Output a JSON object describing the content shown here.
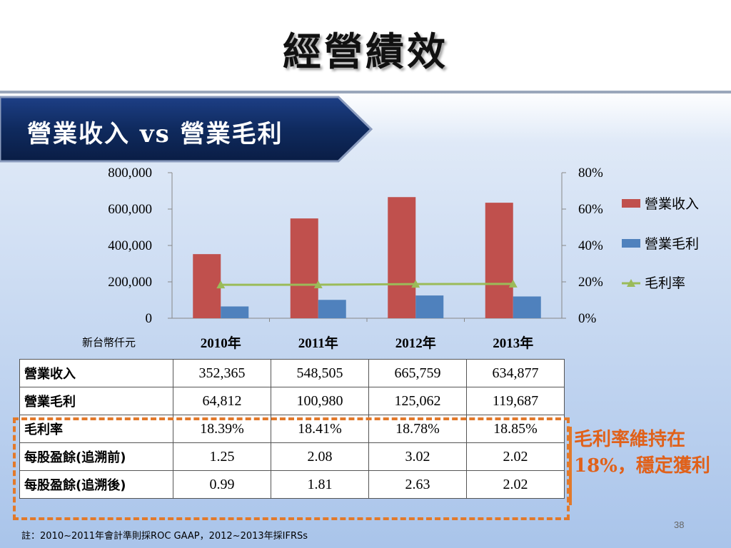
{
  "slide": {
    "title": "經營績效",
    "banner": "營業收入 vs 營業毛利",
    "note": "毛利率維持在18%，穩定獲利",
    "footnote": "註：2010~2011年會計準則採ROC GAAP，2012~2013年採IFRSs",
    "page_number": "38"
  },
  "colors": {
    "revenue": "#c0504d",
    "gross_profit": "#4f81bd",
    "margin_line": "#9bbb59",
    "banner": "#0f2a5e",
    "highlight": "#e2792a"
  },
  "chart_data": {
    "type": "bar",
    "categories": [
      "2010年",
      "2011年",
      "2012年",
      "2013年"
    ],
    "unit_label": "新台幣仟元",
    "series": [
      {
        "name": "營業收入",
        "values": [
          352365,
          548505,
          665759,
          634877
        ],
        "axis": "left"
      },
      {
        "name": "營業毛利",
        "values": [
          64812,
          100980,
          125062,
          119687
        ],
        "axis": "left"
      },
      {
        "name": "毛利率",
        "type": "line",
        "values": [
          18.39,
          18.41,
          18.78,
          18.85
        ],
        "axis": "right"
      }
    ],
    "y_left": {
      "range": [
        0,
        800000
      ],
      "ticks": [
        "0",
        "200,000",
        "400,000",
        "600,000",
        "800,000"
      ]
    },
    "y_right": {
      "range": [
        0,
        80
      ],
      "ticks": [
        "0%",
        "20%",
        "40%",
        "60%",
        "80%"
      ]
    },
    "legend": "right",
    "grid": false
  },
  "table": {
    "rows": [
      {
        "label": "營業收入",
        "values": [
          "352,365",
          "548,505",
          "665,759",
          "634,877"
        ]
      },
      {
        "label": "營業毛利",
        "values": [
          "64,812",
          "100,980",
          "125,062",
          "119,687"
        ]
      },
      {
        "label": "毛利率",
        "values": [
          "18.39%",
          "18.41%",
          "18.78%",
          "18.85%"
        ]
      },
      {
        "label": "每股盈餘(追溯前)",
        "values": [
          "1.25",
          "2.08",
          "3.02",
          "2.02"
        ]
      },
      {
        "label": "每股盈餘(追溯後)",
        "values": [
          "0.99",
          "1.81",
          "2.63",
          "2.02"
        ]
      }
    ]
  }
}
